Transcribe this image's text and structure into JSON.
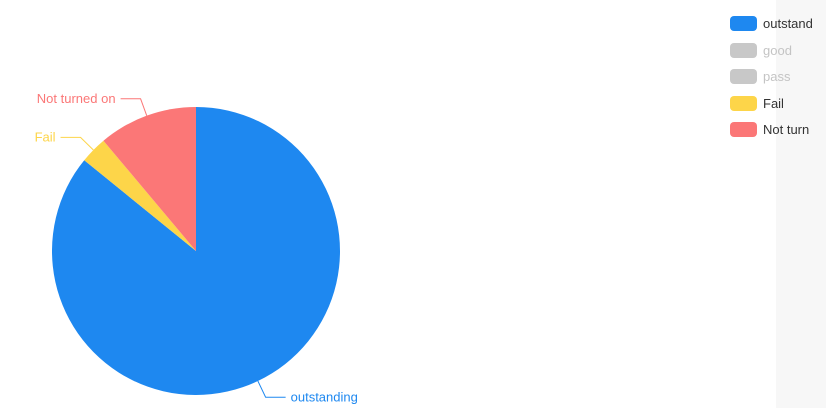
{
  "chart_data": {
    "type": "pie",
    "categories": [
      "outstanding",
      "good",
      "pass",
      "Fail",
      "Not turned on"
    ],
    "values": [
      85,
      0,
      0,
      3,
      11
    ],
    "unit": "",
    "colors": [
      "#1e88f0",
      "#c8c8c8",
      "#c8c8c8",
      "#fdd549",
      "#fb7777"
    ],
    "inactive_color": "#c8c8c8",
    "legend": {
      "position": "top-right",
      "items": [
        {
          "label": "outstand",
          "color": "#1e88f0",
          "active": true
        },
        {
          "label": "good",
          "color": "#c8c8c8",
          "active": false
        },
        {
          "label": "pass",
          "color": "#c8c8c8",
          "active": false
        },
        {
          "label": "Fail",
          "color": "#fdd549",
          "active": true
        },
        {
          "label": "Not turn",
          "color": "#fb7777",
          "active": true
        }
      ]
    },
    "slice_labels": [
      {
        "category": "outstanding",
        "text": "outstanding"
      },
      {
        "category": "Fail",
        "text": "Fail"
      },
      {
        "category": "Not turned on",
        "text": "Not turned on"
      }
    ]
  }
}
